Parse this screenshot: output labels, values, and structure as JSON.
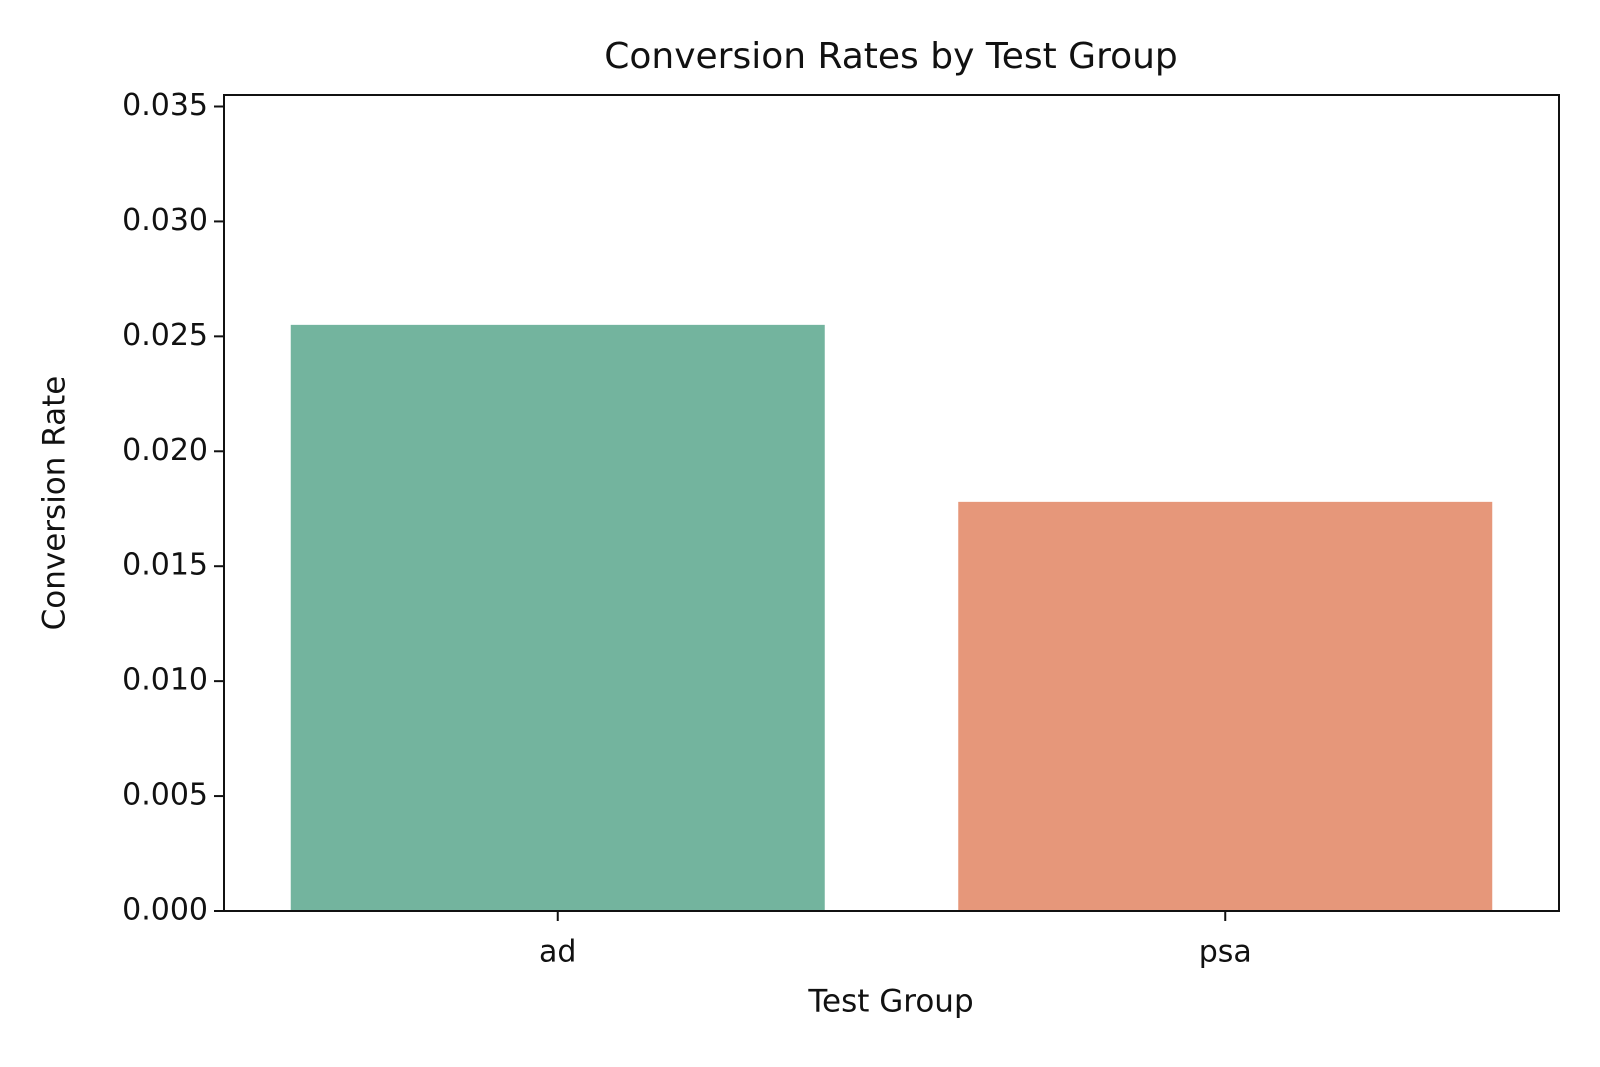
{
  "chart_data": {
    "type": "bar",
    "title": "Conversion Rates by Test Group",
    "x_label": "Test Group",
    "y_label": "Conversion Rate",
    "categories": [
      "ad",
      "psa"
    ],
    "values": [
      0.0255,
      0.0178
    ],
    "colors": [
      "#73b49e",
      "#e6977a"
    ],
    "ylim": [
      0,
      0.0355
    ],
    "yticks": [
      {
        "value": 0,
        "label": "0.000"
      },
      {
        "value": 0.005,
        "label": "0.005"
      },
      {
        "value": 0.01,
        "label": "0.010"
      },
      {
        "value": 0.015,
        "label": "0.015"
      },
      {
        "value": 0.02,
        "label": "0.020"
      },
      {
        "value": 0.025,
        "label": "0.025"
      },
      {
        "value": 0.03,
        "label": "0.030"
      },
      {
        "value": 0.035,
        "label": "0.035"
      }
    ],
    "grid": false
  }
}
